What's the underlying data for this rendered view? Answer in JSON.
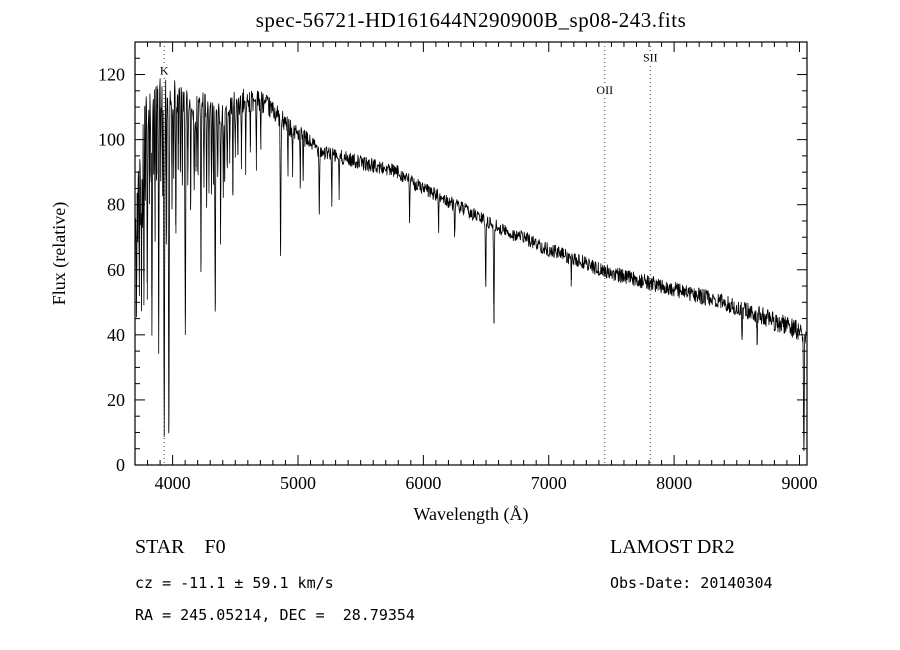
{
  "title": "spec-56721-HD161644N290900B_sp08-243.fits",
  "annotations": {
    "class_label": "STAR    F0",
    "survey": "LAMOST DR2",
    "cz": "cz = -11.1 ± 59.1 km/s",
    "obs_date": "Obs-Date: 20140304",
    "coords": "RA = 245.05214, DEC =  28.79354"
  },
  "chart_data": {
    "type": "line",
    "title": "spec-56721-HD161644N290900B_sp08-243.fits",
    "xlabel": "Wavelength (Å)",
    "ylabel": "Flux (relative)",
    "xlim": [
      3700,
      9060
    ],
    "ylim": [
      0,
      130
    ],
    "x_ticks": [
      4000,
      5000,
      6000,
      7000,
      8000,
      9000
    ],
    "y_ticks": [
      0,
      20,
      40,
      60,
      80,
      100,
      120
    ],
    "x_minor_step": 100,
    "y_minor_step": 5,
    "grid": false,
    "legend": "none",
    "line_color": "#000000",
    "background": "#ffffff",
    "continuum": [
      [
        3705,
        75
      ],
      [
        3730,
        100
      ],
      [
        3760,
        108
      ],
      [
        3800,
        112
      ],
      [
        3850,
        113
      ],
      [
        3900,
        115
      ],
      [
        3950,
        114
      ],
      [
        4000,
        114
      ],
      [
        4050,
        112
      ],
      [
        4100,
        110
      ],
      [
        4200,
        110
      ],
      [
        4300,
        109
      ],
      [
        4400,
        109
      ],
      [
        4500,
        111
      ],
      [
        4600,
        112
      ],
      [
        4700,
        112
      ],
      [
        4800,
        109
      ],
      [
        4900,
        105
      ],
      [
        5000,
        102
      ],
      [
        5100,
        99
      ],
      [
        5200,
        96
      ],
      [
        5300,
        95
      ],
      [
        5400,
        94
      ],
      [
        5500,
        93
      ],
      [
        5600,
        92
      ],
      [
        5700,
        91
      ],
      [
        5800,
        90
      ],
      [
        5900,
        87
      ],
      [
        6000,
        85
      ],
      [
        6100,
        83
      ],
      [
        6200,
        81
      ],
      [
        6300,
        79
      ],
      [
        6400,
        77
      ],
      [
        6500,
        75
      ],
      [
        6600,
        73
      ],
      [
        6700,
        71
      ],
      [
        6800,
        70
      ],
      [
        6900,
        68
      ],
      [
        7000,
        66
      ],
      [
        7100,
        65
      ],
      [
        7200,
        63
      ],
      [
        7300,
        62
      ],
      [
        7400,
        60
      ],
      [
        7500,
        59
      ],
      [
        7600,
        58
      ],
      [
        7700,
        57
      ],
      [
        7800,
        56
      ],
      [
        7900,
        55
      ],
      [
        8000,
        54
      ],
      [
        8100,
        53
      ],
      [
        8200,
        52
      ],
      [
        8300,
        51
      ],
      [
        8400,
        50
      ],
      [
        8500,
        48
      ],
      [
        8600,
        47
      ],
      [
        8700,
        46
      ],
      [
        8800,
        44
      ],
      [
        8900,
        43
      ],
      [
        9000,
        41
      ],
      [
        9055,
        40
      ]
    ],
    "absorption_lines": [
      [
        3712,
        32,
        5
      ],
      [
        3722,
        20,
        4
      ],
      [
        3734,
        46,
        5
      ],
      [
        3745,
        26,
        4
      ],
      [
        3752,
        52,
        5
      ],
      [
        3760,
        34,
        4
      ],
      [
        3771,
        56,
        5
      ],
      [
        3782,
        26,
        4
      ],
      [
        3798,
        60,
        5
      ],
      [
        3815,
        30,
        4
      ],
      [
        3827,
        24,
        4
      ],
      [
        3835,
        72,
        5
      ],
      [
        3850,
        26,
        4
      ],
      [
        3860,
        42,
        4
      ],
      [
        3872,
        26,
        4
      ],
      [
        3889,
        76,
        5
      ],
      [
        3905,
        26,
        4
      ],
      [
        3920,
        32,
        4
      ],
      [
        3933,
        103,
        6
      ],
      [
        3950,
        42,
        4
      ],
      [
        3970,
        108,
        6
      ],
      [
        3995,
        32,
        4
      ],
      [
        4009,
        22,
        4
      ],
      [
        4026,
        42,
        5
      ],
      [
        4045,
        22,
        4
      ],
      [
        4063,
        20,
        4
      ],
      [
        4077,
        26,
        4
      ],
      [
        4101,
        66,
        6
      ],
      [
        4121,
        20,
        4
      ],
      [
        4144,
        32,
        4
      ],
      [
        4172,
        26,
        4
      ],
      [
        4187,
        20,
        4
      ],
      [
        4202,
        22,
        4
      ],
      [
        4226,
        46,
        5
      ],
      [
        4250,
        22,
        4
      ],
      [
        4271,
        32,
        4
      ],
      [
        4290,
        26,
        4
      ],
      [
        4310,
        24,
        4
      ],
      [
        4325,
        22,
        4
      ],
      [
        4340,
        64,
        6
      ],
      [
        4360,
        22,
        4
      ],
      [
        4383,
        40,
        4
      ],
      [
        4404,
        28,
        4
      ],
      [
        4415,
        22,
        4
      ],
      [
        4435,
        20,
        4
      ],
      [
        4455,
        16,
        4
      ],
      [
        4481,
        30,
        4
      ],
      [
        4500,
        14,
        4
      ],
      [
        4520,
        16,
        4
      ],
      [
        4549,
        18,
        4
      ],
      [
        4583,
        20,
        4
      ],
      [
        4620,
        14,
        4
      ],
      [
        4668,
        18,
        4
      ],
      [
        4703,
        14,
        4
      ],
      [
        4861,
        42,
        6
      ],
      [
        4920,
        16,
        4
      ],
      [
        4957,
        12,
        4
      ],
      [
        5018,
        16,
        4
      ],
      [
        5041,
        12,
        4
      ],
      [
        5170,
        18,
        5
      ],
      [
        5270,
        14,
        4
      ],
      [
        5328,
        12,
        4
      ],
      [
        5890,
        12,
        4
      ],
      [
        6122,
        10,
        4
      ],
      [
        6250,
        10,
        4
      ],
      [
        6497,
        20,
        5
      ],
      [
        6563,
        30,
        6
      ],
      [
        7180,
        8,
        4
      ],
      [
        8542,
        10,
        5
      ],
      [
        8662,
        8,
        5
      ],
      [
        9035,
        38,
        6
      ]
    ],
    "noise": {
      "seed": 42,
      "amplitude": [
        [
          3700,
          7
        ],
        [
          4000,
          6
        ],
        [
          4400,
          4.5
        ],
        [
          4800,
          3
        ],
        [
          5300,
          2.2
        ],
        [
          6500,
          2.0
        ],
        [
          7500,
          2.2
        ],
        [
          8300,
          2.5
        ],
        [
          9060,
          3
        ]
      ]
    },
    "markers": [
      {
        "label": "K",
        "wavelength": 3933,
        "label_flux": 120
      },
      {
        "label": "OII",
        "wavelength": 7447,
        "label_flux": 114
      },
      {
        "label": "SII",
        "wavelength": 7810,
        "label_flux": 124
      }
    ]
  }
}
